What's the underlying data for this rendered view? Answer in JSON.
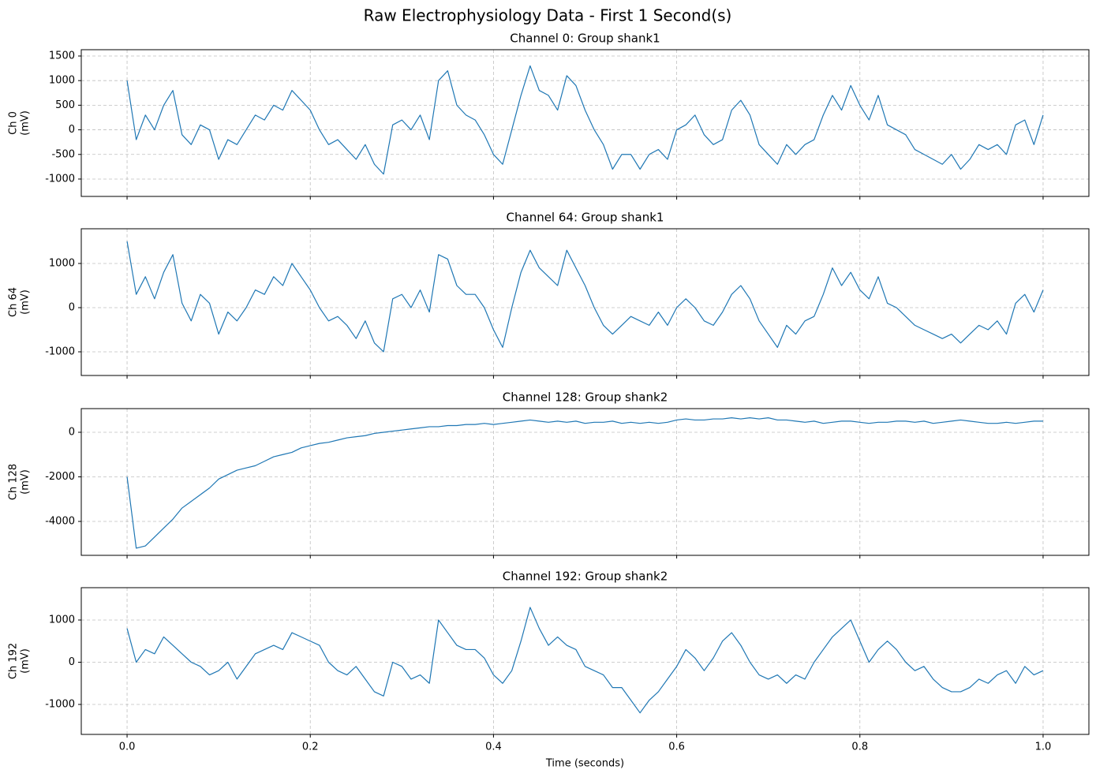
{
  "title": "Raw Electrophysiology Data - First 1 Second(s)",
  "chart_data": [
    {
      "type": "line",
      "title": "Channel 0: Group shank1",
      "ylabel": [
        "Ch 0",
        "(mV)"
      ],
      "color": "#1f77b4",
      "grid": true,
      "xlim": [
        -0.05,
        1.05
      ],
      "ylim": [
        -1353,
        1628
      ],
      "xticks": [
        0,
        0.2,
        0.4,
        0.6,
        0.8,
        1
      ],
      "yticks": [
        -1000,
        -500,
        0,
        500,
        1000,
        1500
      ],
      "x": [
        0,
        0.01,
        0.02,
        0.03,
        0.04,
        0.05,
        0.06,
        0.07,
        0.08,
        0.09,
        0.1,
        0.11,
        0.12,
        0.13,
        0.14,
        0.15,
        0.16,
        0.17,
        0.18,
        0.19,
        0.2,
        0.21,
        0.22,
        0.23,
        0.24,
        0.25,
        0.26,
        0.27,
        0.28,
        0.29,
        0.3,
        0.31,
        0.32,
        0.33,
        0.34,
        0.35,
        0.36,
        0.37,
        0.38,
        0.39,
        0.4,
        0.41,
        0.42,
        0.43,
        0.44,
        0.45,
        0.46,
        0.47,
        0.48,
        0.49,
        0.5,
        0.51,
        0.52,
        0.53,
        0.54,
        0.55,
        0.56,
        0.57,
        0.58,
        0.59,
        0.6,
        0.61,
        0.62,
        0.63,
        0.64,
        0.65,
        0.66,
        0.67,
        0.68,
        0.69,
        0.7,
        0.71,
        0.72,
        0.73,
        0.74,
        0.75,
        0.76,
        0.77,
        0.78,
        0.79,
        0.8,
        0.81,
        0.82,
        0.83,
        0.84,
        0.85,
        0.86,
        0.87,
        0.88,
        0.89,
        0.9,
        0.91,
        0.92,
        0.93,
        0.94,
        0.95,
        0.96,
        0.97,
        0.98,
        0.99,
        1
      ],
      "values": [
        1000,
        -200,
        300,
        0,
        500,
        800,
        -100,
        -300,
        100,
        0,
        -600,
        -200,
        -300,
        0,
        300,
        200,
        500,
        400,
        800,
        600,
        400,
        0,
        -300,
        -200,
        -400,
        -600,
        -300,
        -700,
        -900,
        100,
        200,
        0,
        300,
        -200,
        1000,
        1200,
        500,
        300,
        200,
        -100,
        -500,
        -700,
        0,
        700,
        1300,
        800,
        700,
        400,
        1100,
        900,
        400,
        0,
        -300,
        -800,
        -500,
        -500,
        -800,
        -500,
        -400,
        -600,
        0,
        100,
        300,
        -100,
        -300,
        -200,
        400,
        600,
        300,
        -300,
        -500,
        -700,
        -300,
        -500,
        -300,
        -200,
        300,
        700,
        400,
        900,
        500,
        200,
        700,
        100,
        0,
        -100,
        -400,
        -500,
        -600,
        -700,
        -500,
        -800,
        -600,
        -300,
        -400,
        -300,
        -500,
        100,
        200,
        -300,
        300
      ]
    },
    {
      "type": "line",
      "title": "Channel 64: Group shank1",
      "ylabel": [
        "Ch 64",
        "(mV)"
      ],
      "color": "#1f77b4",
      "grid": true,
      "xlim": [
        -0.05,
        1.05
      ],
      "ylim": [
        -1536,
        1786
      ],
      "xticks": [
        0,
        0.2,
        0.4,
        0.6,
        0.8,
        1
      ],
      "yticks": [
        -1000,
        0,
        1000
      ],
      "x": [
        0,
        0.01,
        0.02,
        0.03,
        0.04,
        0.05,
        0.06,
        0.07,
        0.08,
        0.09,
        0.1,
        0.11,
        0.12,
        0.13,
        0.14,
        0.15,
        0.16,
        0.17,
        0.18,
        0.19,
        0.2,
        0.21,
        0.22,
        0.23,
        0.24,
        0.25,
        0.26,
        0.27,
        0.28,
        0.29,
        0.3,
        0.31,
        0.32,
        0.33,
        0.34,
        0.35,
        0.36,
        0.37,
        0.38,
        0.39,
        0.4,
        0.41,
        0.42,
        0.43,
        0.44,
        0.45,
        0.46,
        0.47,
        0.48,
        0.49,
        0.5,
        0.51,
        0.52,
        0.53,
        0.54,
        0.55,
        0.56,
        0.57,
        0.58,
        0.59,
        0.6,
        0.61,
        0.62,
        0.63,
        0.64,
        0.65,
        0.66,
        0.67,
        0.68,
        0.69,
        0.7,
        0.71,
        0.72,
        0.73,
        0.74,
        0.75,
        0.76,
        0.77,
        0.78,
        0.79,
        0.8,
        0.81,
        0.82,
        0.83,
        0.84,
        0.85,
        0.86,
        0.87,
        0.88,
        0.89,
        0.9,
        0.91,
        0.92,
        0.93,
        0.94,
        0.95,
        0.96,
        0.97,
        0.98,
        0.99,
        1
      ],
      "values": [
        1500,
        300,
        700,
        200,
        800,
        1200,
        100,
        -300,
        300,
        100,
        -600,
        -100,
        -300,
        0,
        400,
        300,
        700,
        500,
        1000,
        700,
        400,
        0,
        -300,
        -200,
        -400,
        -700,
        -300,
        -800,
        -1000,
        200,
        300,
        0,
        400,
        -100,
        1200,
        1100,
        500,
        300,
        300,
        0,
        -500,
        -900,
        0,
        800,
        1300,
        900,
        700,
        500,
        1300,
        900,
        500,
        0,
        -400,
        -600,
        -400,
        -200,
        -300,
        -400,
        -100,
        -400,
        0,
        200,
        0,
        -300,
        -400,
        -100,
        300,
        500,
        200,
        -300,
        -600,
        -900,
        -400,
        -600,
        -300,
        -200,
        300,
        900,
        500,
        800,
        400,
        200,
        700,
        100,
        0,
        -200,
        -400,
        -500,
        -600,
        -700,
        -600,
        -800,
        -600,
        -400,
        -500,
        -300,
        -600,
        100,
        300,
        -100,
        400
      ]
    },
    {
      "type": "line",
      "title": "Channel 128: Group shank2",
      "ylabel": [
        "Ch 128",
        "(mV)"
      ],
      "color": "#1f77b4",
      "grid": true,
      "xlim": [
        -0.05,
        1.05
      ],
      "ylim": [
        -5522,
        1062
      ],
      "xticks": [
        0,
        0.2,
        0.4,
        0.6,
        0.8,
        1
      ],
      "yticks": [
        -4000,
        -2000,
        0
      ],
      "x": [
        0,
        0.01,
        0.02,
        0.03,
        0.04,
        0.05,
        0.06,
        0.07,
        0.08,
        0.09,
        0.1,
        0.11,
        0.12,
        0.13,
        0.14,
        0.15,
        0.16,
        0.17,
        0.18,
        0.19,
        0.2,
        0.21,
        0.22,
        0.23,
        0.24,
        0.25,
        0.26,
        0.27,
        0.28,
        0.29,
        0.3,
        0.31,
        0.32,
        0.33,
        0.34,
        0.35,
        0.36,
        0.37,
        0.38,
        0.39,
        0.4,
        0.41,
        0.42,
        0.43,
        0.44,
        0.45,
        0.46,
        0.47,
        0.48,
        0.49,
        0.5,
        0.51,
        0.52,
        0.53,
        0.54,
        0.55,
        0.56,
        0.57,
        0.58,
        0.59,
        0.6,
        0.61,
        0.62,
        0.63,
        0.64,
        0.65,
        0.66,
        0.67,
        0.68,
        0.69,
        0.7,
        0.71,
        0.72,
        0.73,
        0.74,
        0.75,
        0.76,
        0.77,
        0.78,
        0.79,
        0.8,
        0.81,
        0.82,
        0.83,
        0.84,
        0.85,
        0.86,
        0.87,
        0.88,
        0.89,
        0.9,
        0.91,
        0.92,
        0.93,
        0.94,
        0.95,
        0.96,
        0.97,
        0.98,
        0.99,
        1
      ],
      "values": [
        -2000,
        -5200,
        -5100,
        -4700,
        -4300,
        -3900,
        -3400,
        -3100,
        -2800,
        -2500,
        -2100,
        -1900,
        -1700,
        -1600,
        -1500,
        -1300,
        -1100,
        -1000,
        -900,
        -700,
        -600,
        -500,
        -450,
        -350,
        -250,
        -200,
        -150,
        -50,
        0,
        50,
        100,
        150,
        200,
        250,
        250,
        300,
        300,
        350,
        350,
        400,
        350,
        400,
        450,
        500,
        550,
        500,
        450,
        500,
        450,
        500,
        400,
        450,
        450,
        500,
        400,
        450,
        400,
        450,
        400,
        450,
        550,
        600,
        550,
        550,
        600,
        600,
        650,
        600,
        650,
        600,
        650,
        550,
        550,
        500,
        450,
        500,
        400,
        450,
        500,
        500,
        450,
        400,
        450,
        450,
        500,
        500,
        450,
        500,
        400,
        450,
        500,
        550,
        500,
        450,
        400,
        400,
        450,
        400,
        450,
        500,
        500
      ]
    },
    {
      "type": "line",
      "title": "Channel 192: Group shank2",
      "ylabel": [
        "Ch 192",
        "(mV)"
      ],
      "xlabel": "Time (seconds)",
      "color": "#1f77b4",
      "grid": true,
      "xlim": [
        -0.05,
        1.05
      ],
      "ylim": [
        -1710,
        1766
      ],
      "xticks": [
        {
          "value": 0,
          "label": "0.0"
        },
        0.2,
        0.4,
        0.6,
        0.8,
        {
          "value": 1,
          "label": "1.0"
        }
      ],
      "yticks": [
        -1000,
        0,
        1000
      ],
      "x": [
        0,
        0.01,
        0.02,
        0.03,
        0.04,
        0.05,
        0.06,
        0.07,
        0.08,
        0.09,
        0.1,
        0.11,
        0.12,
        0.13,
        0.14,
        0.15,
        0.16,
        0.17,
        0.18,
        0.19,
        0.2,
        0.21,
        0.22,
        0.23,
        0.24,
        0.25,
        0.26,
        0.27,
        0.28,
        0.29,
        0.3,
        0.31,
        0.32,
        0.33,
        0.34,
        0.35,
        0.36,
        0.37,
        0.38,
        0.39,
        0.4,
        0.41,
        0.42,
        0.43,
        0.44,
        0.45,
        0.46,
        0.47,
        0.48,
        0.49,
        0.5,
        0.51,
        0.52,
        0.53,
        0.54,
        0.55,
        0.56,
        0.57,
        0.58,
        0.59,
        0.6,
        0.61,
        0.62,
        0.63,
        0.64,
        0.65,
        0.66,
        0.67,
        0.68,
        0.69,
        0.7,
        0.71,
        0.72,
        0.73,
        0.74,
        0.75,
        0.76,
        0.77,
        0.78,
        0.79,
        0.8,
        0.81,
        0.82,
        0.83,
        0.84,
        0.85,
        0.86,
        0.87,
        0.88,
        0.89,
        0.9,
        0.91,
        0.92,
        0.93,
        0.94,
        0.95,
        0.96,
        0.97,
        0.98,
        0.99,
        1
      ],
      "values": [
        800,
        0,
        300,
        200,
        600,
        400,
        200,
        0,
        -100,
        -300,
        -200,
        0,
        -400,
        -100,
        200,
        300,
        400,
        300,
        700,
        600,
        500,
        400,
        0,
        -200,
        -300,
        -100,
        -400,
        -700,
        -800,
        0,
        -100,
        -400,
        -300,
        -500,
        1000,
        700,
        400,
        300,
        300,
        100,
        -300,
        -500,
        -200,
        500,
        1300,
        800,
        400,
        600,
        400,
        300,
        -100,
        -200,
        -300,
        -600,
        -600,
        -900,
        -1200,
        -900,
        -700,
        -400,
        -100,
        300,
        100,
        -200,
        100,
        500,
        700,
        400,
        0,
        -300,
        -400,
        -300,
        -500,
        -300,
        -400,
        0,
        300,
        600,
        800,
        1000,
        500,
        0,
        300,
        500,
        300,
        0,
        -200,
        -100,
        -400,
        -600,
        -700,
        -700,
        -600,
        -400,
        -500,
        -300,
        -200,
        -500,
        -100,
        -300,
        -200
      ]
    }
  ]
}
